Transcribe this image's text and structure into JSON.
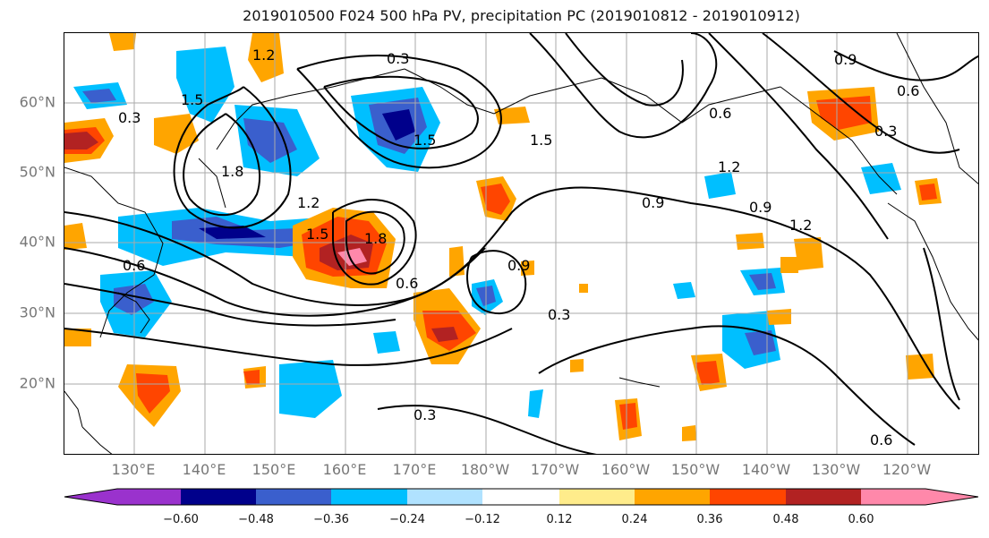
{
  "title": "2019010500 F024 500 hPa PV, precipitation PC (2019010812 - 2019010912)",
  "latitude_labels": [
    "60°N",
    "50°N",
    "40°N",
    "30°N",
    "20°N"
  ],
  "longitude_labels": [
    "130°E",
    "140°E",
    "150°E",
    "160°E",
    "170°E",
    "180°W",
    "170°W",
    "160°W",
    "150°W",
    "140°W",
    "130°W",
    "120°W"
  ],
  "colorbar": {
    "ticks": [
      "−0.60",
      "−0.48",
      "−0.36",
      "−0.24",
      "−0.12",
      "0.12",
      "0.24",
      "0.36",
      "0.48",
      "0.60"
    ],
    "colors": [
      "#9a32cd",
      "#00008b",
      "#3a5fcd",
      "#00bfff",
      "#b0e2ff",
      "#ffffff",
      "#ffec8b",
      "#ffa500",
      "#ff4500",
      "#b22222",
      "#ff88aa"
    ]
  },
  "contour_labels": [
    "0.3",
    "0.6",
    "0.9",
    "1.2",
    "1.5",
    "1.8"
  ],
  "shading_colors": {
    "light_blue": "#b0e2ff",
    "sky_blue": "#00bfff",
    "blue": "#3a5fcd",
    "navy": "#00008b",
    "yellow": "#ffec8b",
    "orange": "#ffa500",
    "red_orange": "#ff4500",
    "dark_red": "#b22222",
    "pink": "#ff88aa"
  }
}
